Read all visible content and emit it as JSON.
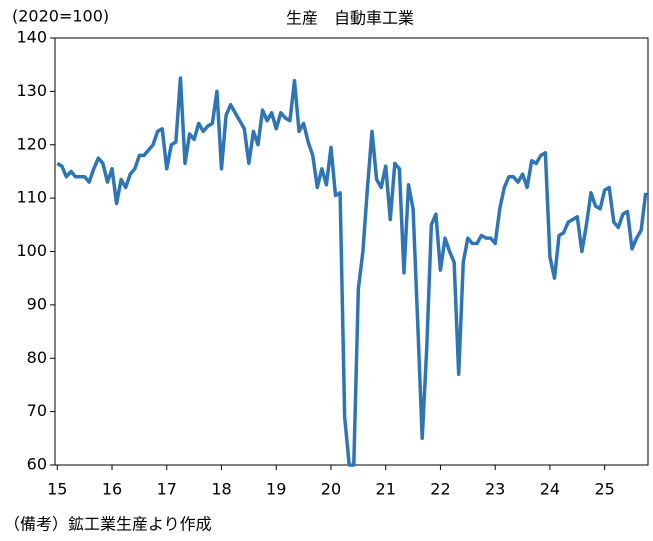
{
  "chart_data": {
    "type": "line",
    "title": "生産　自動車工業",
    "y_unit_label": "(2020=100)",
    "note": "（備考）鉱工業生産より作成",
    "categories": [
      "15",
      null,
      null,
      null,
      null,
      null,
      null,
      null,
      null,
      null,
      null,
      null,
      "16",
      null,
      null,
      null,
      null,
      null,
      null,
      null,
      null,
      null,
      null,
      null,
      "17",
      null,
      null,
      null,
      null,
      null,
      null,
      null,
      null,
      null,
      null,
      null,
      "18",
      null,
      null,
      null,
      null,
      null,
      null,
      null,
      null,
      null,
      null,
      null,
      "19",
      null,
      null,
      null,
      null,
      null,
      null,
      null,
      null,
      null,
      null,
      null,
      "20",
      null,
      null,
      null,
      null,
      null,
      null,
      null,
      null,
      null,
      null,
      null,
      "21",
      null,
      null,
      null,
      null,
      null,
      null,
      null,
      null,
      null,
      null,
      null,
      "22",
      null,
      null,
      null,
      null,
      null,
      null,
      null,
      null,
      null,
      null,
      null,
      "23",
      null,
      null,
      null,
      null,
      null,
      null,
      null,
      null,
      null,
      null,
      null,
      "24",
      null,
      null,
      null,
      null,
      null,
      null,
      null,
      null,
      null,
      null,
      null,
      "25",
      null,
      null,
      null,
      null,
      null,
      null,
      null,
      null,
      null
    ],
    "color": "#2e75b6",
    "values": [
      116.5,
      116,
      114,
      115,
      114,
      114,
      114,
      113,
      115.5,
      117.5,
      116.5,
      113,
      115.5,
      109,
      113.5,
      112,
      114.5,
      115.5,
      118,
      118,
      119,
      120,
      122.5,
      123,
      115.5,
      120,
      120.5,
      132.5,
      116.5,
      122,
      121,
      124,
      122.5,
      123.5,
      124,
      130,
      115.5,
      125.5,
      127.5,
      126,
      124.5,
      123,
      116.5,
      122.5,
      120,
      126.5,
      124.5,
      126,
      123,
      126,
      125,
      124.5,
      132,
      122.5,
      124,
      120.5,
      118,
      112,
      115.5,
      112.5,
      119.5,
      110.5,
      111,
      69,
      60,
      60,
      93,
      100,
      112,
      122.5,
      113.5,
      112,
      116,
      106,
      116.5,
      115.5,
      96,
      112.5,
      108,
      87,
      65,
      82,
      105,
      107,
      96.5,
      102.5,
      100,
      98,
      77,
      98,
      102.5,
      101.5,
      101.5,
      103,
      102.5,
      102.5,
      101.5,
      108,
      112,
      114,
      114,
      113,
      114.5,
      112,
      117,
      116.5,
      118,
      118.5,
      99,
      95,
      103,
      103.5,
      105.5,
      106,
      106.5,
      100,
      105,
      111,
      108.5,
      108,
      111.5,
      112,
      105.5,
      104.5,
      107,
      107.5,
      100.5,
      102.5,
      104,
      111
    ],
    "ylim": [
      60,
      140
    ],
    "yticks": [
      60,
      70,
      80,
      90,
      100,
      110,
      120,
      130,
      140
    ],
    "grid": false
  }
}
